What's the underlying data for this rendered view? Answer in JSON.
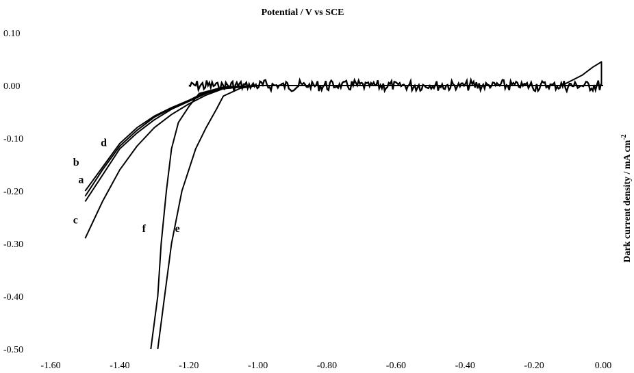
{
  "chart_data": {
    "type": "line",
    "title": "Potential / V vs SCE",
    "xlabel": "Potential / V vs SCE",
    "ylabel": "Dark current density / mA cm",
    "ylabel_sup": "-2",
    "xlim": [
      -1.6,
      0.0
    ],
    "ylim": [
      -0.5,
      0.1
    ],
    "x_ticks": [
      "-1.60",
      "-1.40",
      "-1.20",
      "-1.00",
      "-0.80",
      "-0.60",
      "-0.40",
      "-0.20",
      "0.00"
    ],
    "y_ticks": [
      "0.10",
      "0.00",
      "-0.10",
      "-0.20",
      "-0.30",
      "-0.40",
      "-0.50"
    ],
    "grid": false,
    "legend": "none",
    "series": [
      {
        "name": "a",
        "points": [
          [
            -1.5,
            -0.22
          ],
          [
            -1.45,
            -0.17
          ],
          [
            -1.4,
            -0.12
          ],
          [
            -1.35,
            -0.09
          ],
          [
            -1.3,
            -0.065
          ],
          [
            -1.25,
            -0.045
          ],
          [
            -1.2,
            -0.03
          ],
          [
            -1.15,
            -0.015
          ],
          [
            -1.1,
            -0.005
          ],
          [
            -1.0,
            0.0
          ],
          [
            0.0,
            0.0
          ]
        ]
      },
      {
        "name": "b",
        "points": [
          [
            -1.5,
            -0.2
          ],
          [
            -1.45,
            -0.155
          ],
          [
            -1.4,
            -0.11
          ],
          [
            -1.35,
            -0.08
          ],
          [
            -1.3,
            -0.058
          ],
          [
            -1.25,
            -0.042
          ],
          [
            -1.2,
            -0.028
          ],
          [
            -1.15,
            -0.012
          ],
          [
            -1.1,
            -0.004
          ],
          [
            -1.0,
            0.0
          ],
          [
            0.0,
            0.0
          ]
        ]
      },
      {
        "name": "c",
        "points": [
          [
            -1.5,
            -0.29
          ],
          [
            -1.45,
            -0.22
          ],
          [
            -1.4,
            -0.16
          ],
          [
            -1.35,
            -0.115
          ],
          [
            -1.3,
            -0.08
          ],
          [
            -1.25,
            -0.055
          ],
          [
            -1.2,
            -0.035
          ],
          [
            -1.15,
            -0.018
          ],
          [
            -1.1,
            -0.006
          ],
          [
            -1.0,
            0.0
          ],
          [
            0.0,
            0.0
          ]
        ]
      },
      {
        "name": "d",
        "points": [
          [
            -1.5,
            -0.21
          ],
          [
            -1.45,
            -0.16
          ],
          [
            -1.4,
            -0.115
          ],
          [
            -1.35,
            -0.085
          ],
          [
            -1.3,
            -0.06
          ],
          [
            -1.25,
            -0.043
          ],
          [
            -1.2,
            -0.029
          ],
          [
            -1.15,
            -0.013
          ],
          [
            -1.1,
            -0.004
          ],
          [
            -1.0,
            0.0
          ],
          [
            0.0,
            0.0
          ]
        ]
      },
      {
        "name": "e",
        "points": [
          [
            -1.29,
            -0.5
          ],
          [
            -1.27,
            -0.4
          ],
          [
            -1.25,
            -0.3
          ],
          [
            -1.22,
            -0.2
          ],
          [
            -1.18,
            -0.12
          ],
          [
            -1.15,
            -0.08
          ],
          [
            -1.12,
            -0.045
          ],
          [
            -1.1,
            -0.02
          ],
          [
            -1.05,
            -0.005
          ],
          [
            -1.0,
            0.0
          ],
          [
            0.0,
            0.0
          ]
        ]
      },
      {
        "name": "f",
        "points": [
          [
            -1.31,
            -0.5
          ],
          [
            -1.29,
            -0.4
          ],
          [
            -1.28,
            -0.3
          ],
          [
            -1.265,
            -0.2
          ],
          [
            -1.25,
            -0.12
          ],
          [
            -1.23,
            -0.07
          ],
          [
            -1.2,
            -0.04
          ],
          [
            -1.17,
            -0.015
          ],
          [
            -1.1,
            -0.003
          ],
          [
            -1.0,
            0.0
          ],
          [
            0.0,
            0.0
          ]
        ]
      }
    ]
  }
}
